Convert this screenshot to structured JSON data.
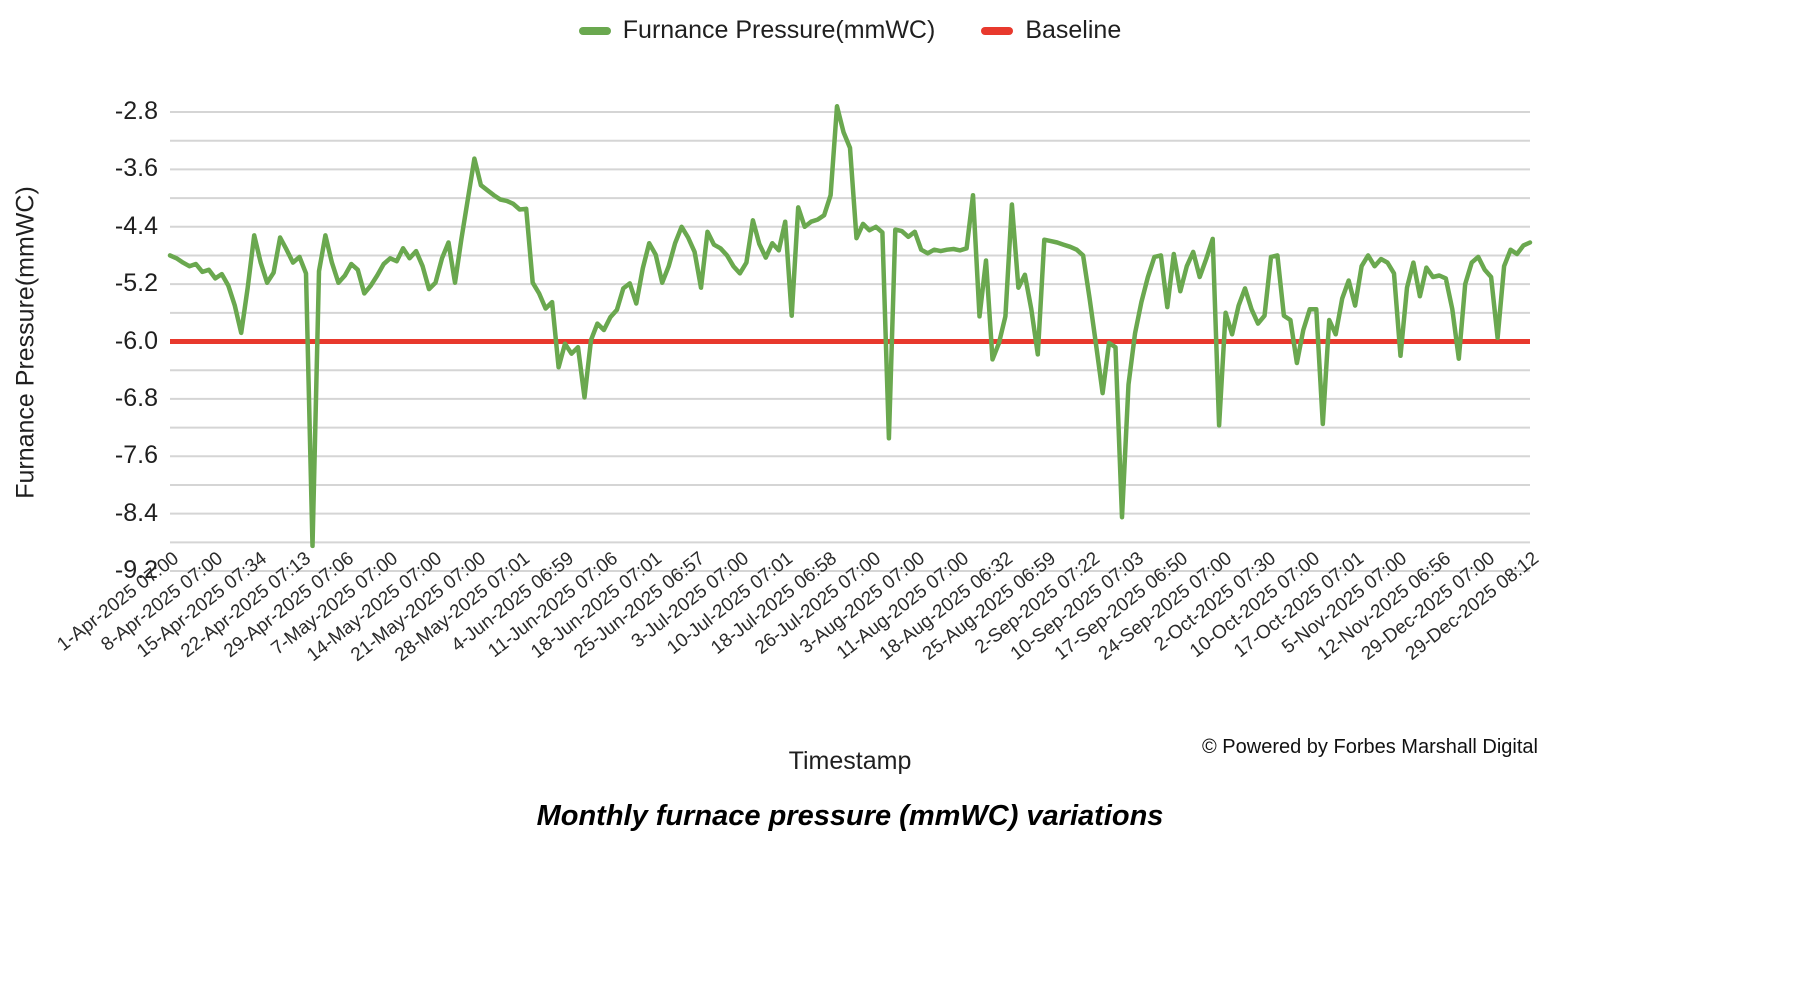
{
  "legend": {
    "series_label": "Furnance Pressure(mmWC)",
    "baseline_label": "Baseline"
  },
  "colors": {
    "series": "#6aa84f",
    "baseline": "#e8392d",
    "gridline": "#d5d5d5",
    "text": "#1f1f1f"
  },
  "footer": {
    "credit": "© Powered by Forbes Marshall Digital"
  },
  "chart_data": {
    "type": "line",
    "title": "Monthly furnace pressure (mmWC) variations",
    "xlabel": "Timestamp",
    "ylabel": "Furnance Pressure(mmWC)",
    "ylim": [
      -9.2,
      -2.8
    ],
    "y_ticks": [
      -2.8,
      -3.6,
      -4.4,
      -5.2,
      -6.0,
      -6.8,
      -7.6,
      -8.4,
      -9.2
    ],
    "grid_step": 0.4,
    "grid": true,
    "legend_position": "top-center",
    "baseline_value": -6.0,
    "x_tick_labels": [
      "1-Apr-2025 07:00",
      "8-Apr-2025 07:00",
      "15-Apr-2025 07:34",
      "22-Apr-2025 07:13",
      "29-Apr-2025 07:06",
      "7-May-2025 07:00",
      "14-May-2025 07:00",
      "21-May-2025 07:00",
      "28-May-2025 07:01",
      "4-Jun-2025 06:59",
      "11-Jun-2025 07:06",
      "18-Jun-2025 07:01",
      "25-Jun-2025 06:57",
      "3-Jul-2025 07:00",
      "10-Jul-2025 07:01",
      "18-Jul-2025 06:58",
      "26-Jul-2025 07:00",
      "3-Aug-2025 07:00",
      "11-Aug-2025 07:00",
      "18-Aug-2025 06:32",
      "25-Aug-2025 06:59",
      "2-Sep-2025 07:22",
      "10-Sep-2025 07:03",
      "17-Sep-2025 06:50",
      "24-Sep-2025 07:00",
      "2-Oct-2025 07:30",
      "10-Oct-2025 07:00",
      "17-Oct-2025 07:01",
      "5-Nov-2025 07:00",
      "12-Nov-2025 06:56",
      "29-Dec-2025 07:00",
      "29-Dec-2025 08:12"
    ],
    "series": [
      {
        "name": "Furnance Pressure(mmWC)",
        "values": [
          -4.8,
          -4.84,
          -4.9,
          -4.95,
          -4.92,
          -5.03,
          -5.0,
          -5.12,
          -5.06,
          -5.22,
          -5.5,
          -5.88,
          -5.25,
          -4.52,
          -4.9,
          -5.18,
          -5.04,
          -4.55,
          -4.72,
          -4.9,
          -4.82,
          -5.05,
          -8.85,
          -5.02,
          -4.52,
          -4.9,
          -5.18,
          -5.08,
          -4.92,
          -5.0,
          -5.33,
          -5.22,
          -5.08,
          -4.92,
          -4.84,
          -4.88,
          -4.7,
          -4.84,
          -4.74,
          -4.95,
          -5.27,
          -5.18,
          -4.84,
          -4.62,
          -5.18,
          -4.57,
          -4.01,
          -3.45,
          -3.82,
          -3.89,
          -3.96,
          -4.02,
          -4.04,
          -4.08,
          -4.16,
          -4.15,
          -5.18,
          -5.33,
          -5.54,
          -5.45,
          -6.36,
          -6.03,
          -6.17,
          -6.08,
          -6.78,
          -5.98,
          -5.75,
          -5.84,
          -5.66,
          -5.56,
          -5.26,
          -5.19,
          -5.47,
          -4.98,
          -4.63,
          -4.79,
          -5.18,
          -4.95,
          -4.63,
          -4.4,
          -4.55,
          -4.75,
          -5.25,
          -4.47,
          -4.65,
          -4.7,
          -4.8,
          -4.95,
          -5.05,
          -4.9,
          -4.31,
          -4.64,
          -4.83,
          -4.63,
          -4.73,
          -4.33,
          -5.64,
          -4.13,
          -4.4,
          -4.33,
          -4.3,
          -4.24,
          -3.96,
          -2.72,
          -3.08,
          -3.3,
          -4.56,
          -4.36,
          -4.45,
          -4.4,
          -4.48,
          -7.35,
          -4.44,
          -4.46,
          -4.54,
          -4.47,
          -4.72,
          -4.77,
          -4.72,
          -4.74,
          -4.72,
          -4.71,
          -4.73,
          -4.7,
          -3.96,
          -5.65,
          -4.87,
          -6.25,
          -6.02,
          -5.65,
          -4.09,
          -5.25,
          -5.07,
          -5.55,
          -6.18,
          -4.58,
          -4.6,
          -4.62,
          -4.65,
          -4.68,
          -4.72,
          -4.8,
          -5.4,
          -6.05,
          -6.72,
          -6.02,
          -6.08,
          -8.45,
          -6.6,
          -5.89,
          -5.45,
          -5.1,
          -4.82,
          -4.8,
          -5.52,
          -4.78,
          -5.3,
          -4.95,
          -4.75,
          -5.1,
          -4.85,
          -4.57,
          -7.17,
          -5.6,
          -5.9,
          -5.5,
          -5.26,
          -5.55,
          -5.75,
          -5.64,
          -4.82,
          -4.8,
          -5.64,
          -5.7,
          -6.3,
          -5.84,
          -5.55,
          -5.55,
          -7.15,
          -5.7,
          -5.9,
          -5.4,
          -5.15,
          -5.5,
          -4.95,
          -4.8,
          -4.95,
          -4.85,
          -4.9,
          -5.05,
          -6.2,
          -5.25,
          -4.9,
          -5.37,
          -4.97,
          -5.1,
          -5.08,
          -5.12,
          -5.55,
          -6.24,
          -5.2,
          -4.9,
          -4.82,
          -5.0,
          -5.1,
          -5.95,
          -4.95,
          -4.72,
          -4.78,
          -4.66,
          -4.62
        ]
      }
    ]
  }
}
